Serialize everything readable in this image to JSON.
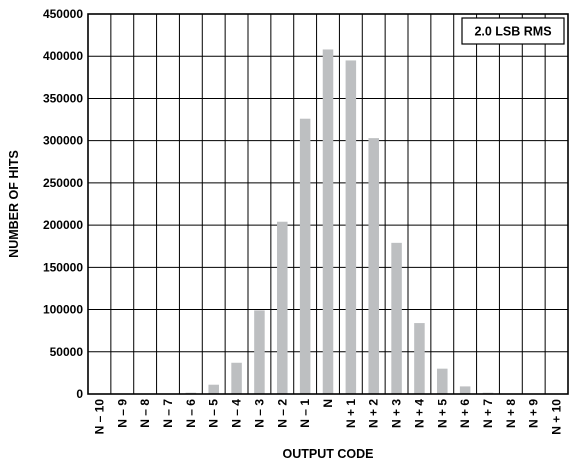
{
  "chart_data": {
    "type": "bar",
    "categories": [
      "N – 10",
      "N – 9",
      "N – 8",
      "N – 7",
      "N – 6",
      "N – 5",
      "N – 4",
      "N – 3",
      "N – 2",
      "N – 1",
      "N",
      "N + 1",
      "N + 2",
      "N + 3",
      "N + 4",
      "N + 5",
      "N + 6",
      "N + 7",
      "N + 8",
      "N + 9",
      "N + 10"
    ],
    "values": [
      0,
      0,
      0,
      0,
      1500,
      11000,
      37000,
      99000,
      204000,
      326000,
      408000,
      395000,
      303000,
      179000,
      84000,
      30000,
      9000,
      1500,
      0,
      0,
      0
    ],
    "title": "",
    "xlabel": "OUTPUT CODE",
    "ylabel": "NUMBER OF HITS",
    "ylim": [
      0,
      450000
    ],
    "yticks": [
      0,
      50000,
      100000,
      150000,
      200000,
      250000,
      300000,
      350000,
      400000,
      450000
    ],
    "grid": true,
    "bar_color": "#bdbfc1",
    "annotation": "2.0 LSB RMS"
  }
}
